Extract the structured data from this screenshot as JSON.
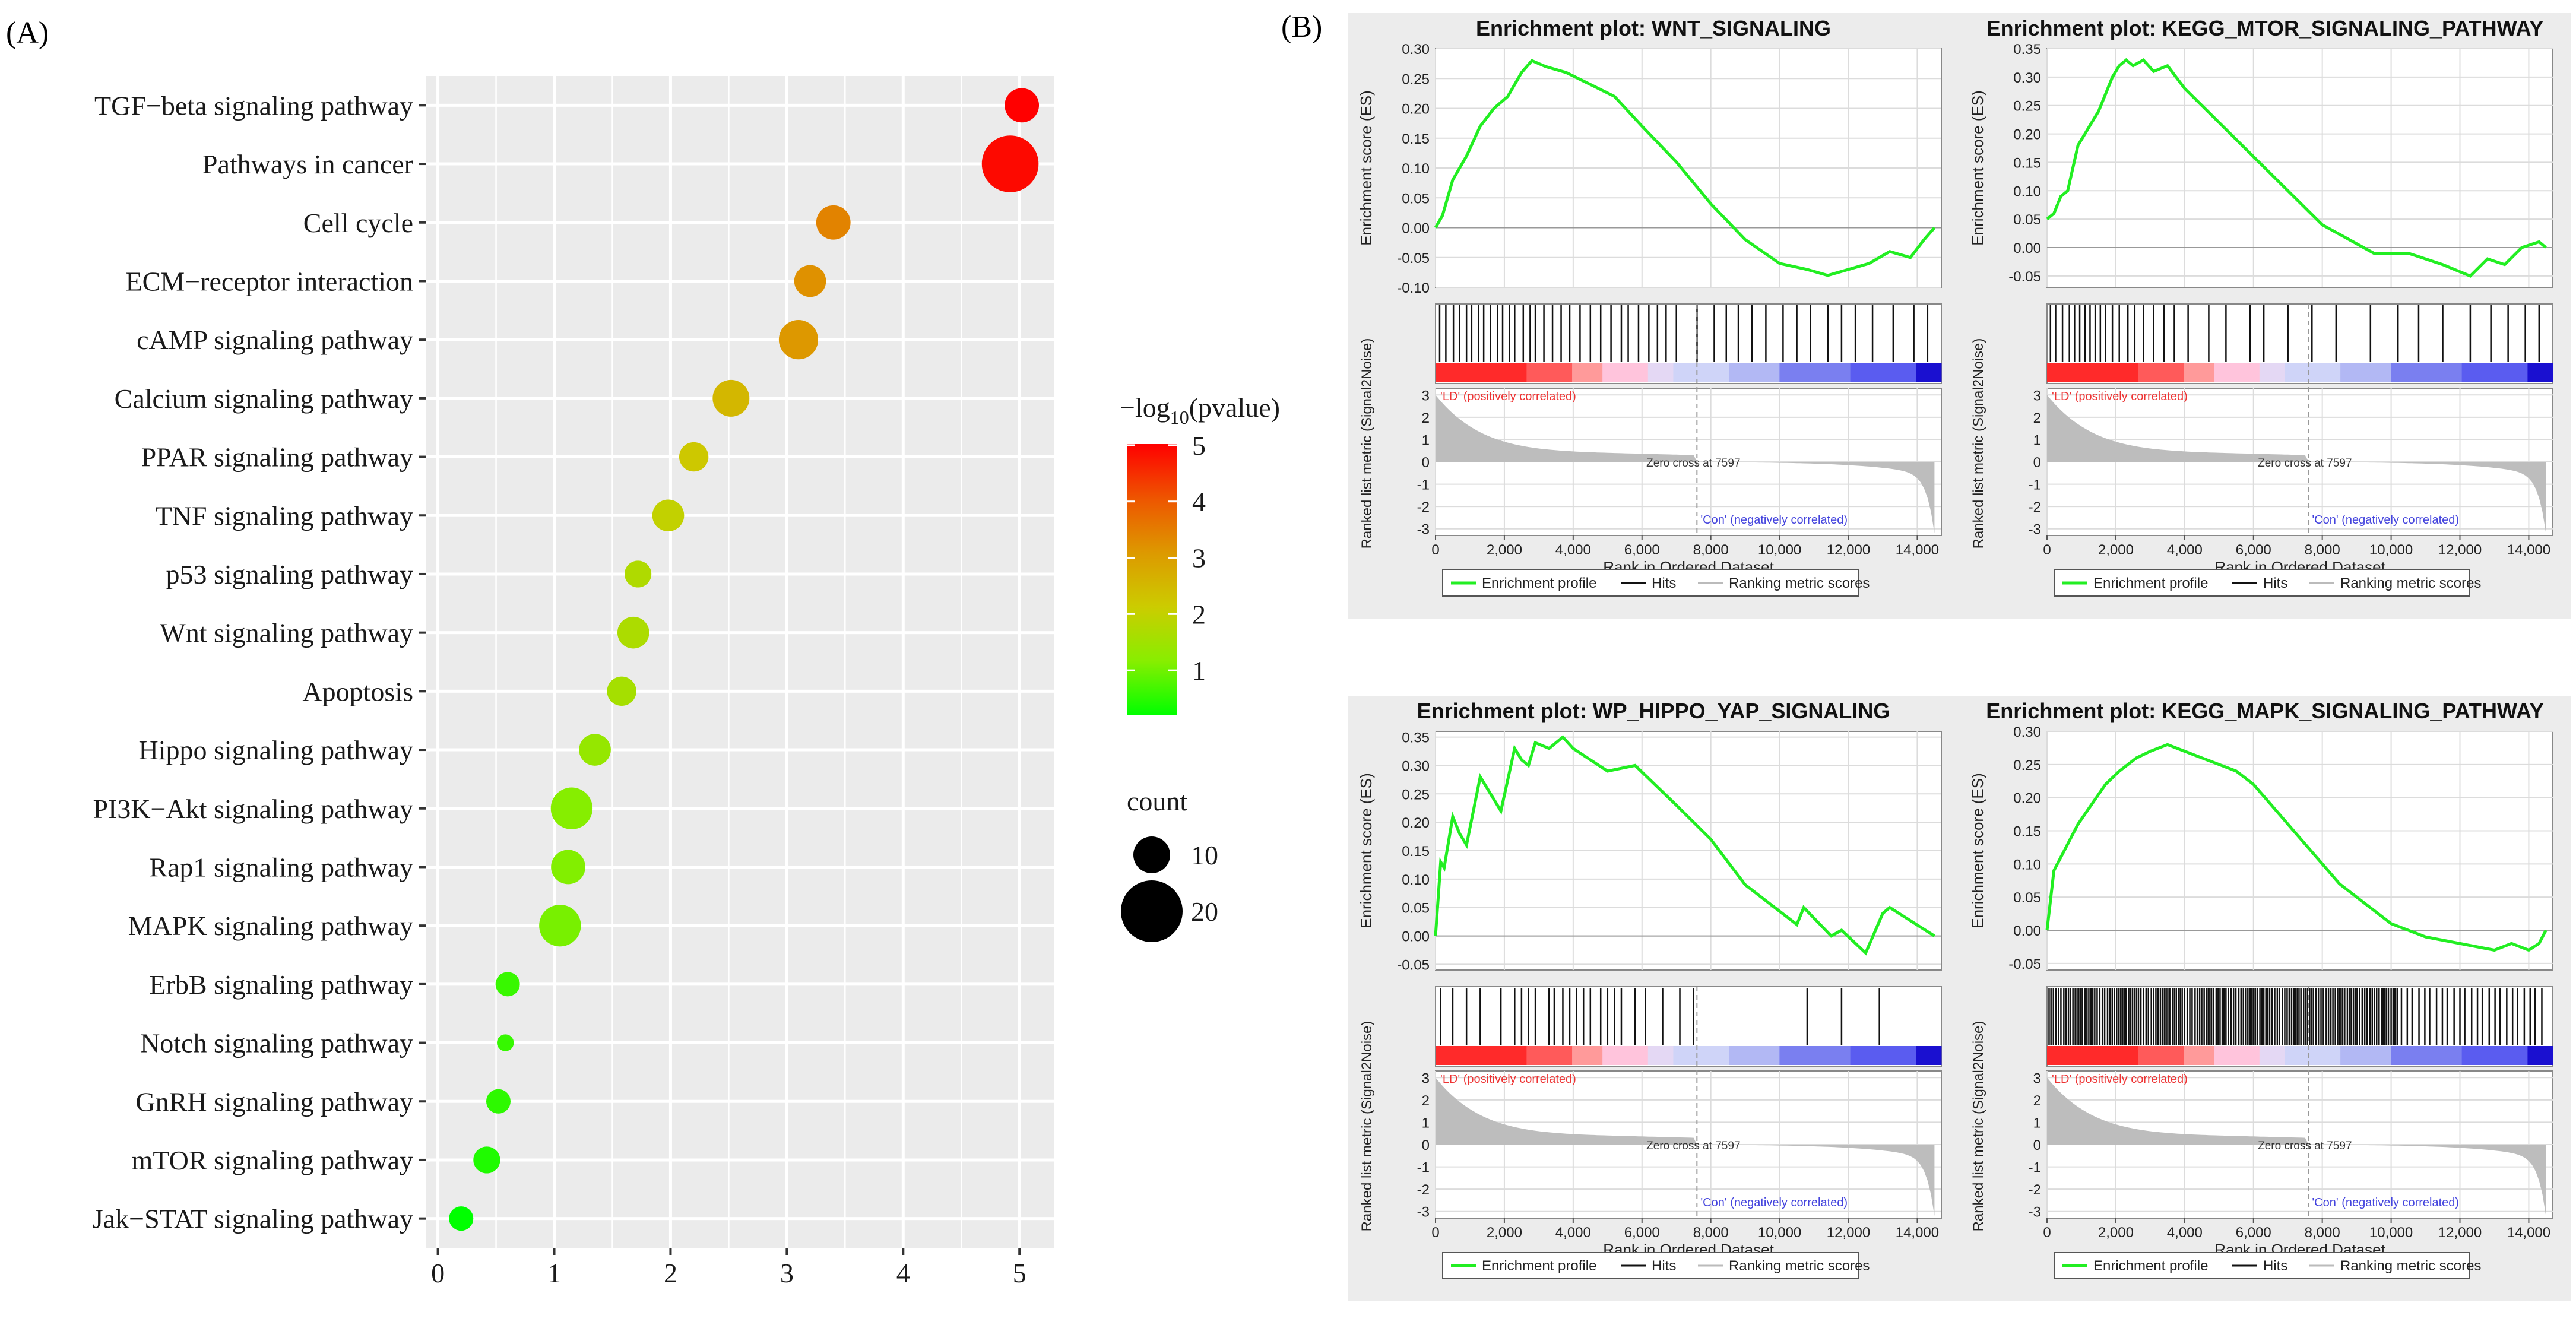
{
  "panel_labels": {
    "a": "(A)",
    "b": "(B)"
  },
  "colors": {
    "panel_bg": "#ebebeb",
    "grid": "#ffffff",
    "gsea_bg": "#ececec",
    "es_line": "#22ee22",
    "hit": "#111111",
    "metric": "#bdbdbd",
    "pos_text": "#ee3333",
    "neg_text": "#4444dd",
    "scale": [
      "#00ff00",
      "#88ee00",
      "#cccc00",
      "#dd9900",
      "#ee5500",
      "#ff0000"
    ]
  },
  "chart_data": [
    {
      "type": "scatter",
      "title": "",
      "xlabel": "",
      "ylabel": "",
      "xlim": [
        -0.1,
        5.3
      ],
      "xticks": [
        0,
        1,
        2,
        3,
        4,
        5
      ],
      "categories": [
        "TGF−beta signaling pathway",
        "Pathways in cancer",
        "Cell cycle",
        "ECM−receptor interaction",
        "cAMP signaling pathway",
        "Calcium signaling pathway",
        "PPAR signaling pathway",
        "TNF signaling pathway",
        "p53 signaling pathway",
        "Wnt signaling pathway",
        "Apoptosis",
        "Hippo signaling pathway",
        "PI3K−Akt signaling pathway",
        "Rap1 signaling pathway",
        "MAPK signaling pathway",
        "ErbB signaling pathway",
        "Notch signaling pathway",
        "GnRH signaling pathway",
        "mTOR signaling pathway",
        "Jak−STAT signaling pathway"
      ],
      "values": [
        5.02,
        4.92,
        3.4,
        3.2,
        3.1,
        2.52,
        2.2,
        1.98,
        1.72,
        1.68,
        1.58,
        1.35,
        1.15,
        1.12,
        1.05,
        0.6,
        0.58,
        0.52,
        0.42,
        0.2
      ],
      "counts": [
        9,
        18,
        9,
        8,
        11,
        10,
        7,
        8,
        6,
        8,
        7,
        8,
        12,
        9,
        12,
        5,
        2,
        5,
        6,
        5
      ],
      "colorbar": {
        "title": "−log",
        "subscript": "10",
        "title_tail": "(pvalue)",
        "ticks": [
          1,
          2,
          3,
          4,
          5
        ],
        "range": [
          0.2,
          5.02
        ]
      },
      "size_legend": {
        "title": "count",
        "values": [
          10,
          20
        ]
      }
    },
    {
      "type": "line",
      "title": "Enrichment plot: WNT_SIGNALING",
      "ylabel": "Enrichment score (ES)",
      "ylim": [
        -0.1,
        0.3
      ],
      "yticks": [
        -0.1,
        -0.05,
        0.0,
        0.05,
        0.1,
        0.15,
        0.2,
        0.25,
        0.3
      ],
      "x": [
        0,
        200,
        500,
        900,
        1300,
        1700,
        2100,
        2500,
        2800,
        3200,
        3800,
        4500,
        5200,
        6000,
        7000,
        8000,
        9000,
        10000,
        10800,
        11400,
        12000,
        12600,
        13200,
        13800,
        14200,
        14500
      ],
      "values": [
        0.0,
        0.02,
        0.08,
        0.12,
        0.17,
        0.2,
        0.22,
        0.26,
        0.28,
        0.27,
        0.26,
        0.24,
        0.22,
        0.17,
        0.11,
        0.04,
        -0.02,
        -0.06,
        -0.07,
        -0.08,
        -0.07,
        -0.06,
        -0.04,
        -0.05,
        -0.02,
        0.0
      ],
      "hits": [
        120,
        300,
        520,
        700,
        900,
        1050,
        1250,
        1400,
        1600,
        1800,
        1950,
        2150,
        2300,
        2550,
        2750,
        2900,
        3150,
        3400,
        3650,
        3900,
        4200,
        4500,
        4800,
        5100,
        5400,
        5600,
        5900,
        6200,
        6450,
        6700,
        7000,
        7600,
        8100,
        8450,
        8800,
        9200,
        9600,
        10100,
        10500,
        10900,
        11400,
        11800,
        12200,
        12700,
        13300,
        13900,
        14300
      ]
    },
    {
      "type": "line",
      "title": "Enrichment plot: KEGG_MTOR_SIGNALING_PATHWAY",
      "ylabel": "Enrichment score (ES)",
      "ylim": [
        -0.07,
        0.35
      ],
      "yticks": [
        -0.05,
        0.0,
        0.05,
        0.1,
        0.15,
        0.2,
        0.25,
        0.3,
        0.35
      ],
      "x": [
        0,
        200,
        400,
        600,
        900,
        1100,
        1300,
        1500,
        1700,
        1900,
        2100,
        2300,
        2500,
        2800,
        3100,
        3500,
        4000,
        4500,
        5000,
        6000,
        7000,
        8000,
        9500,
        10500,
        11500,
        12300,
        12800,
        13300,
        13800,
        14300,
        14500
      ],
      "values": [
        0.05,
        0.06,
        0.09,
        0.1,
        0.18,
        0.2,
        0.22,
        0.24,
        0.27,
        0.3,
        0.32,
        0.33,
        0.32,
        0.33,
        0.31,
        0.32,
        0.28,
        0.25,
        0.22,
        0.16,
        0.1,
        0.04,
        -0.01,
        -0.01,
        -0.03,
        -0.05,
        -0.02,
        -0.03,
        0.0,
        0.01,
        0.0
      ],
      "hits": [
        100,
        250,
        450,
        650,
        800,
        950,
        1100,
        1250,
        1400,
        1550,
        1700,
        1900,
        2100,
        2350,
        2550,
        2800,
        3100,
        3400,
        3700,
        4100,
        4700,
        5200,
        5900,
        6300,
        7000,
        7700,
        8400,
        9400,
        10200,
        10800,
        11500,
        12300,
        12900,
        13400,
        13900,
        14300
      ]
    },
    {
      "type": "line",
      "title": "Enrichment plot: WP_HIPPO_YAP_SIGNALING",
      "ylabel": "Enrichment score (ES)",
      "ylim": [
        -0.06,
        0.36
      ],
      "yticks": [
        -0.05,
        0.0,
        0.05,
        0.1,
        0.15,
        0.2,
        0.25,
        0.3,
        0.35
      ],
      "x": [
        0,
        150,
        250,
        500,
        700,
        900,
        1300,
        1500,
        1900,
        2300,
        2500,
        2700,
        2900,
        3300,
        3700,
        4000,
        4500,
        5000,
        5800,
        7000,
        8000,
        9000,
        10500,
        10700,
        11500,
        11800,
        12500,
        13000,
        13200,
        14500
      ],
      "values": [
        0.0,
        0.13,
        0.12,
        0.21,
        0.18,
        0.16,
        0.28,
        0.26,
        0.22,
        0.33,
        0.31,
        0.3,
        0.34,
        0.33,
        0.35,
        0.33,
        0.31,
        0.29,
        0.3,
        0.23,
        0.17,
        0.09,
        0.02,
        0.05,
        0.0,
        0.01,
        -0.03,
        0.04,
        0.05,
        0.0
      ],
      "hits": [
        150,
        500,
        900,
        1300,
        1900,
        2300,
        2500,
        2700,
        2900,
        3300,
        3450,
        3700,
        3900,
        4100,
        4300,
        4500,
        4800,
        5000,
        5200,
        5400,
        5800,
        6100,
        6600,
        7100,
        7500,
        10800,
        11800,
        12900
      ]
    },
    {
      "type": "line",
      "title": "Enrichment plot: KEGG_MAPK_SIGNALING_PATHWAY",
      "ylabel": "Enrichment score (ES)",
      "ylim": [
        -0.06,
        0.3
      ],
      "yticks": [
        -0.05,
        0.0,
        0.05,
        0.1,
        0.15,
        0.2,
        0.25,
        0.3
      ],
      "x": [
        0,
        200,
        500,
        900,
        1300,
        1700,
        2100,
        2600,
        3000,
        3500,
        4000,
        4500,
        5000,
        5500,
        6000,
        6500,
        7000,
        7500,
        8000,
        8500,
        9000,
        9500,
        10000,
        11000,
        12000,
        13000,
        13500,
        14000,
        14300,
        14500
      ],
      "values": [
        0.0,
        0.09,
        0.12,
        0.16,
        0.19,
        0.22,
        0.24,
        0.26,
        0.27,
        0.28,
        0.27,
        0.26,
        0.25,
        0.24,
        0.22,
        0.19,
        0.16,
        0.13,
        0.1,
        0.07,
        0.05,
        0.03,
        0.01,
        -0.01,
        -0.02,
        -0.03,
        -0.02,
        -0.03,
        -0.02,
        0.0
      ],
      "hits_density": "dense"
    }
  ],
  "gsea_common": {
    "ylabel_metric": "Ranked list metric (Signal2Noise)",
    "metric_ticks": [
      3,
      2,
      1,
      0,
      -1,
      -2,
      -3
    ],
    "metric_ylim": [
      -3.3,
      3.3
    ],
    "xlabel": "Rank in Ordered Dataset",
    "xticks": [
      "0",
      "2,000",
      "4,000",
      "6,000",
      "8,000",
      "10,000",
      "12,000",
      "14,000"
    ],
    "xmax": 14700,
    "pos_label": "'LD' (positively correlated)",
    "neg_label": "'Con' (negatively correlated)",
    "zero_cross": "Zero cross at 7597",
    "zero_rank": 7597,
    "legend": [
      "Enrichment profile",
      "Hits",
      "Ranking metric scores"
    ]
  }
}
